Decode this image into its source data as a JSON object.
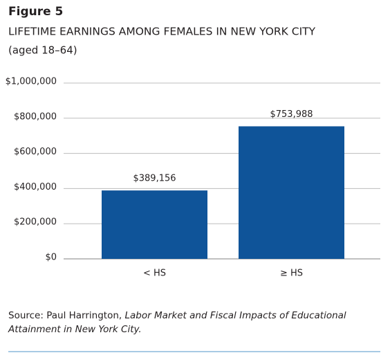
{
  "chart_data": {
    "type": "bar",
    "figure": "Figure 5",
    "title": "LIFETIME EARNINGS AMONG FEMALES IN NEW YORK CITY",
    "subtitle": "(aged 18–64)",
    "categories": [
      "< HS",
      "≥ HS"
    ],
    "values": [
      389156,
      753988
    ],
    "value_labels": [
      "$389,156",
      "$753,988"
    ],
    "color": "#0f5499",
    "ylim": [
      0,
      1000000
    ],
    "yticks": [
      {
        "value": 0,
        "label": "$0"
      },
      {
        "value": 200000,
        "label": "$200,000"
      },
      {
        "value": 400000,
        "label": "$400,000"
      },
      {
        "value": 600000,
        "label": "$600,000"
      },
      {
        "value": 800000,
        "label": "$800,000"
      },
      {
        "value": 1000000,
        "label": "$1,000,000"
      }
    ],
    "grid": true
  },
  "source": {
    "label": "Source: Paul Harrington,",
    "title": "Labor Market and Fiscal Impacts of Educational Attainment in New York City."
  }
}
